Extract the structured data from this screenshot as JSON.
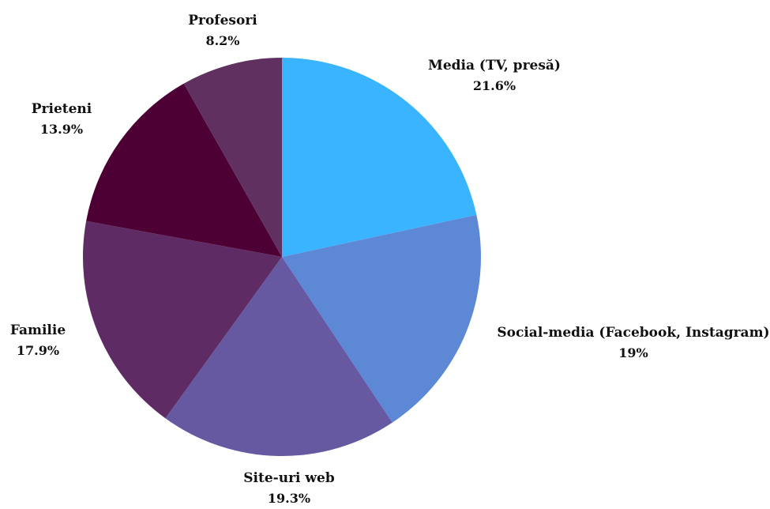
{
  "chart_data": {
    "type": "pie",
    "title": "",
    "slices": [
      {
        "label": "Media (TV, presă)",
        "value": 21.6,
        "value_label": "21.6%",
        "color": "#3bb4ff"
      },
      {
        "label": "Social-media (Facebook, Instagram)",
        "value": 19,
        "value_label": "19%",
        "color": "#5d88d6"
      },
      {
        "label": "Site-uri web",
        "value": 19.3,
        "value_label": "19.3%",
        "color": "#6659a2"
      },
      {
        "label": "Familie",
        "value": 17.9,
        "value_label": "17.9%",
        "color": "#5e2b64"
      },
      {
        "label": "Prieteni",
        "value": 13.9,
        "value_label": "13.9%",
        "color": "#4d0033"
      },
      {
        "label": "Profesori",
        "value": 8.2,
        "value_label": "8.2%",
        "color": "#603060"
      }
    ],
    "start_angle": "12 o'clock",
    "direction": "clockwise",
    "legend": "none",
    "labels": "outside slices"
  }
}
